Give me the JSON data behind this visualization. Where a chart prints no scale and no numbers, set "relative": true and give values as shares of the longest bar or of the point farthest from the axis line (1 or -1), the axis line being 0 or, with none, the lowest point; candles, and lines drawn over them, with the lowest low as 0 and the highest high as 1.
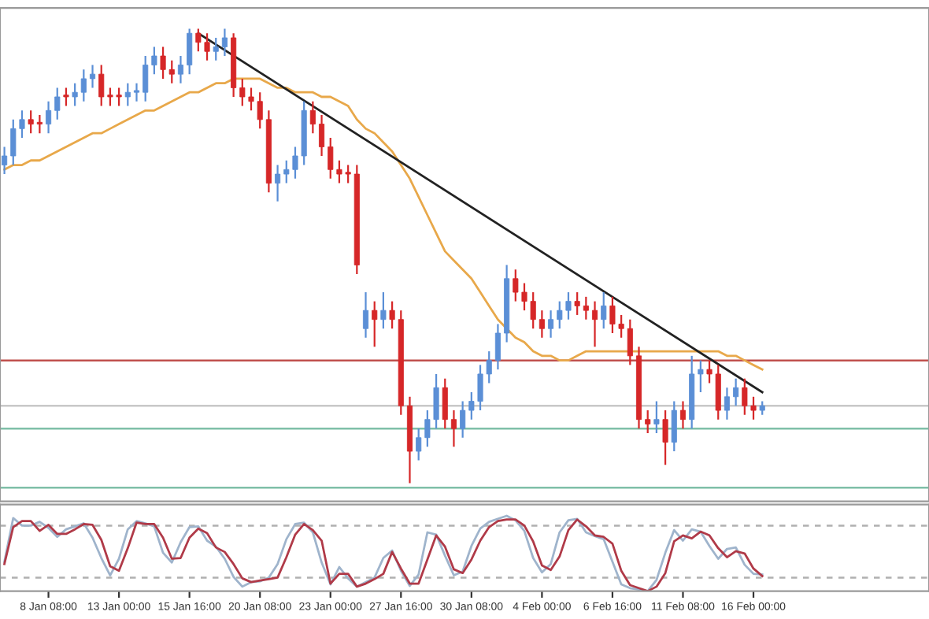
{
  "chart_data": [
    {
      "type": "candlestick",
      "relative": true,
      "tick_labels": false,
      "categories": [
        null,
        null,
        null,
        null,
        null,
        null,
        null,
        null,
        null,
        null,
        null,
        null,
        null,
        null,
        null,
        null,
        null,
        null,
        null,
        null,
        null,
        null,
        null,
        null,
        null,
        null,
        null,
        null,
        null,
        null,
        null,
        null,
        null,
        null,
        null,
        null,
        null,
        null,
        null,
        null,
        null,
        null,
        null,
        null,
        null,
        null,
        null,
        null,
        null,
        null,
        null,
        null,
        null,
        null,
        null,
        null,
        null,
        null,
        null,
        null,
        null,
        null,
        null,
        null,
        null,
        null,
        null,
        null,
        null,
        null,
        null,
        null,
        null,
        null,
        null,
        null,
        null,
        null,
        null,
        null,
        null,
        null,
        null,
        null,
        null,
        null,
        null
      ],
      "ohlc": [
        [
          0.7,
          0.74,
          0.68,
          0.72
        ],
        [
          0.72,
          0.8,
          0.7,
          0.78
        ],
        [
          0.78,
          0.82,
          0.76,
          0.8
        ],
        [
          0.8,
          0.82,
          0.77,
          0.79
        ],
        [
          0.79,
          0.81,
          0.77,
          0.79
        ],
        [
          0.79,
          0.84,
          0.77,
          0.82
        ],
        [
          0.82,
          0.87,
          0.8,
          0.85
        ],
        [
          0.85,
          0.87,
          0.83,
          0.85
        ],
        [
          0.85,
          0.88,
          0.83,
          0.86
        ],
        [
          0.86,
          0.91,
          0.84,
          0.89
        ],
        [
          0.89,
          0.92,
          0.87,
          0.9
        ],
        [
          0.9,
          0.92,
          0.83,
          0.85
        ],
        [
          0.85,
          0.87,
          0.83,
          0.85
        ],
        [
          0.85,
          0.87,
          0.83,
          0.85
        ],
        [
          0.85,
          0.88,
          0.83,
          0.86
        ],
        [
          0.86,
          0.88,
          0.84,
          0.86
        ],
        [
          0.86,
          0.94,
          0.84,
          0.92
        ],
        [
          0.92,
          0.96,
          0.9,
          0.94
        ],
        [
          0.94,
          0.96,
          0.89,
          0.91
        ],
        [
          0.91,
          0.93,
          0.88,
          0.9
        ],
        [
          0.9,
          0.94,
          0.88,
          0.92
        ],
        [
          0.92,
          1.0,
          0.9,
          0.99
        ],
        [
          0.99,
          1.0,
          0.95,
          0.97
        ],
        [
          0.97,
          0.99,
          0.93,
          0.95
        ],
        [
          0.95,
          0.98,
          0.93,
          0.96
        ],
        [
          0.96,
          1.0,
          0.94,
          0.98
        ],
        [
          0.98,
          0.99,
          0.85,
          0.87
        ],
        [
          0.87,
          0.89,
          0.83,
          0.85
        ],
        [
          0.85,
          0.87,
          0.82,
          0.84
        ],
        [
          0.84,
          0.86,
          0.78,
          0.8
        ],
        [
          0.8,
          0.82,
          0.64,
          0.66
        ],
        [
          0.66,
          0.7,
          0.62,
          0.68
        ],
        [
          0.68,
          0.71,
          0.66,
          0.69
        ],
        [
          0.69,
          0.74,
          0.67,
          0.72
        ],
        [
          0.72,
          0.84,
          0.7,
          0.82
        ],
        [
          0.82,
          0.84,
          0.77,
          0.79
        ],
        [
          0.79,
          0.81,
          0.72,
          0.74
        ],
        [
          0.74,
          0.76,
          0.67,
          0.69
        ],
        [
          0.69,
          0.71,
          0.66,
          0.68
        ],
        [
          0.68,
          0.7,
          0.66,
          0.68
        ],
        [
          0.68,
          0.7,
          0.46,
          0.48
        ],
        [
          0.34,
          0.42,
          0.32,
          0.38
        ],
        [
          0.38,
          0.4,
          0.3,
          0.36
        ],
        [
          0.36,
          0.42,
          0.34,
          0.38
        ],
        [
          0.38,
          0.4,
          0.34,
          0.36
        ],
        [
          0.36,
          0.38,
          0.15,
          0.17
        ],
        [
          0.17,
          0.19,
          0.0,
          0.07
        ],
        [
          0.07,
          0.12,
          0.05,
          0.1
        ],
        [
          0.1,
          0.16,
          0.08,
          0.14
        ],
        [
          0.14,
          0.24,
          0.12,
          0.21
        ],
        [
          0.21,
          0.23,
          0.12,
          0.14
        ],
        [
          0.14,
          0.16,
          0.08,
          0.12
        ],
        [
          0.12,
          0.18,
          0.1,
          0.16
        ],
        [
          0.16,
          0.2,
          0.14,
          0.18
        ],
        [
          0.18,
          0.26,
          0.16,
          0.24
        ],
        [
          0.24,
          0.29,
          0.22,
          0.27
        ],
        [
          0.27,
          0.35,
          0.25,
          0.33
        ],
        [
          0.33,
          0.48,
          0.31,
          0.45
        ],
        [
          0.45,
          0.47,
          0.4,
          0.42
        ],
        [
          0.42,
          0.44,
          0.38,
          0.4
        ],
        [
          0.4,
          0.42,
          0.34,
          0.36
        ],
        [
          0.36,
          0.38,
          0.32,
          0.34
        ],
        [
          0.34,
          0.38,
          0.32,
          0.36
        ],
        [
          0.36,
          0.4,
          0.34,
          0.38
        ],
        [
          0.38,
          0.42,
          0.36,
          0.4
        ],
        [
          0.4,
          0.42,
          0.37,
          0.39
        ],
        [
          0.39,
          0.41,
          0.36,
          0.38
        ],
        [
          0.38,
          0.4,
          0.3,
          0.36
        ],
        [
          0.36,
          0.42,
          0.34,
          0.39
        ],
        [
          0.39,
          0.41,
          0.33,
          0.35
        ],
        [
          0.35,
          0.37,
          0.32,
          0.34
        ],
        [
          0.34,
          0.36,
          0.26,
          0.28
        ],
        [
          0.28,
          0.3,
          0.12,
          0.14
        ],
        [
          0.14,
          0.16,
          0.11,
          0.13
        ],
        [
          0.13,
          0.18,
          0.11,
          0.14
        ],
        [
          0.14,
          0.16,
          0.04,
          0.09
        ],
        [
          0.09,
          0.18,
          0.07,
          0.16
        ],
        [
          0.16,
          0.18,
          0.12,
          0.14
        ],
        [
          0.14,
          0.28,
          0.12,
          0.24
        ],
        [
          0.24,
          0.27,
          0.2,
          0.25
        ],
        [
          0.25,
          0.27,
          0.22,
          0.24
        ],
        [
          0.24,
          0.26,
          0.14,
          0.16
        ],
        [
          0.16,
          0.21,
          0.14,
          0.19
        ],
        [
          0.19,
          0.23,
          0.17,
          0.21
        ],
        [
          0.21,
          0.23,
          0.15,
          0.17
        ],
        [
          0.17,
          0.19,
          0.14,
          0.16
        ],
        [
          0.16,
          0.18,
          0.15,
          0.17
        ]
      ],
      "colors": [
        "#5b8fd6",
        "#5b8fd6",
        "#5b8fd6",
        "#d62728",
        "#d62728",
        "#5b8fd6",
        "#5b8fd6",
        "#d62728",
        "#5b8fd6",
        "#5b8fd6",
        "#5b8fd6",
        "#d62728",
        "#d62728",
        "#d62728",
        "#5b8fd6",
        "#5b8fd6",
        "#5b8fd6",
        "#5b8fd6",
        "#d62728",
        "#d62728",
        "#5b8fd6",
        "#5b8fd6",
        "#d62728",
        "#d62728",
        "#5b8fd6",
        "#5b8fd6",
        "#d62728",
        "#d62728",
        "#d62728",
        "#d62728",
        "#d62728",
        "#5b8fd6",
        "#5b8fd6",
        "#5b8fd6",
        "#5b8fd6",
        "#d62728",
        "#d62728",
        "#d62728",
        "#d62728",
        "#d62728",
        "#d62728",
        "#5b8fd6",
        "#d62728",
        "#5b8fd6",
        "#d62728",
        "#d62728",
        "#d62728",
        "#5b8fd6",
        "#5b8fd6",
        "#5b8fd6",
        "#d62728",
        "#d62728",
        "#5b8fd6",
        "#5b8fd6",
        "#5b8fd6",
        "#5b8fd6",
        "#5b8fd6",
        "#5b8fd6",
        "#d62728",
        "#d62728",
        "#d62728",
        "#d62728",
        "#5b8fd6",
        "#5b8fd6",
        "#5b8fd6",
        "#d62728",
        "#d62728",
        "#d62728",
        "#5b8fd6",
        "#d62728",
        "#d62728",
        "#d62728",
        "#d62728",
        "#d62728",
        "#5b8fd6",
        "#d62728",
        "#5b8fd6",
        "#d62728",
        "#5b8fd6",
        "#5b8fd6",
        "#d62728",
        "#d62728",
        "#5b8fd6",
        "#5b8fd6",
        "#d62728",
        "#d62728",
        "#5b8fd6"
      ],
      "series": [
        {
          "type": "line",
          "color": "#e8a84a",
          "values": [
            0.69,
            0.7,
            0.7,
            0.71,
            0.71,
            0.72,
            0.73,
            0.74,
            0.75,
            0.76,
            0.77,
            0.77,
            0.78,
            0.79,
            0.8,
            0.81,
            0.82,
            0.82,
            0.83,
            0.84,
            0.85,
            0.86,
            0.86,
            0.87,
            0.88,
            0.88,
            0.89,
            0.89,
            0.89,
            0.89,
            0.88,
            0.87,
            0.87,
            0.86,
            0.86,
            0.86,
            0.85,
            0.85,
            0.84,
            0.83,
            0.8,
            0.78,
            0.77,
            0.75,
            0.73,
            0.7,
            0.67,
            0.63,
            0.59,
            0.55,
            0.51,
            0.49,
            0.47,
            0.45,
            0.42,
            0.39,
            0.36,
            0.34,
            0.32,
            0.31,
            0.29,
            0.28,
            0.28,
            0.27,
            0.27,
            0.28,
            0.29,
            0.29,
            0.29,
            0.29,
            0.29,
            0.29,
            0.29,
            0.29,
            0.29,
            0.29,
            0.29,
            0.29,
            0.29,
            0.29,
            0.29,
            0.29,
            0.28,
            0.28,
            0.27,
            0.26,
            0.25
          ]
        },
        {
          "type": "line",
          "color": "#222222",
          "values": [
            null,
            null,
            null,
            null,
            null,
            null,
            null,
            null,
            null,
            null,
            null,
            null,
            null,
            null,
            null,
            null,
            null,
            null,
            null,
            null,
            null,
            null,
            0.99,
            null,
            null,
            null,
            null,
            null,
            null,
            null,
            null,
            null,
            null,
            null,
            null,
            null,
            null,
            null,
            null,
            null,
            null,
            null,
            null,
            null,
            null,
            null,
            null,
            null,
            null,
            null,
            null,
            null,
            null,
            null,
            null,
            null,
            null,
            null,
            null,
            null,
            null,
            null,
            null,
            null,
            null,
            null,
            null,
            null,
            null,
            null,
            null,
            null,
            null,
            null,
            null,
            null,
            null,
            null,
            null,
            null,
            null,
            null,
            null,
            null,
            null,
            null,
            0.2
          ]
        }
      ],
      "ref_lines": [
        {
          "axis": "y",
          "value": 0.27,
          "color": "#c0504d",
          "line_style": "solid"
        },
        {
          "axis": "y",
          "value": 0.17,
          "color": "#c8c8c8",
          "line_style": "solid"
        },
        {
          "axis": "y",
          "value": 0.12,
          "color": "#7fbfa8",
          "line_style": "solid"
        },
        {
          "axis": "y",
          "value": -0.01,
          "color": "#7fbfa8",
          "line_style": "solid"
        }
      ]
    },
    {
      "type": "line",
      "relative": true,
      "tick_labels": "x",
      "categories": [
        null,
        null,
        null,
        null,
        null,
        "8 Jan 08:00",
        null,
        null,
        null,
        null,
        null,
        null,
        null,
        "13 Jan 00:00",
        null,
        null,
        null,
        null,
        null,
        null,
        null,
        "15 Jan 16:00",
        null,
        null,
        null,
        null,
        null,
        null,
        null,
        "20 Jan 08:00",
        null,
        null,
        null,
        null,
        null,
        null,
        null,
        "23 Jan 00:00",
        null,
        null,
        null,
        null,
        null,
        null,
        null,
        "27 Jan 16:00",
        null,
        null,
        null,
        null,
        null,
        null,
        null,
        "30 Jan 08:00",
        null,
        null,
        null,
        null,
        null,
        null,
        null,
        "4 Feb 00:00",
        null,
        null,
        null,
        null,
        null,
        null,
        null,
        "6 Feb 16:00",
        null,
        null,
        null,
        null,
        null,
        null,
        null,
        "11 Feb 08:00",
        null,
        null,
        null,
        null,
        null,
        null,
        null,
        "16 Feb 00:00",
        null
      ],
      "series": [
        {
          "color": "#9fb4cc",
          "values": [
            0.39,
            0.97,
            0.87,
            0.87,
            0.92,
            0.84,
            0.72,
            0.82,
            0.86,
            0.9,
            0.71,
            0.44,
            0.21,
            0.43,
            0.82,
            0.93,
            0.9,
            0.86,
            0.51,
            0.38,
            0.65,
            0.85,
            0.86,
            0.67,
            0.59,
            0.43,
            0.19,
            0.06,
            0.12,
            0.13,
            0.18,
            0.36,
            0.69,
            0.89,
            0.91,
            0.78,
            0.38,
            0.09,
            0.32,
            0.17,
            0.06,
            0.12,
            0.18,
            0.44,
            0.54,
            0.27,
            0.07,
            0.22,
            0.78,
            0.75,
            0.47,
            0.21,
            0.26,
            0.6,
            0.83,
            0.92,
            0.96,
            1.0,
            0.94,
            0.8,
            0.44,
            0.25,
            0.36,
            0.78,
            0.94,
            0.96,
            0.78,
            0.73,
            0.69,
            0.39,
            0.09,
            0.04,
            0.02,
            0.0,
            0.15,
            0.51,
            0.81,
            0.67,
            0.82,
            0.79,
            0.6,
            0.43,
            0.56,
            0.58,
            0.35,
            0.23,
            0.22
          ]
        },
        {
          "color": "#b03a48",
          "values": [
            0.36,
            0.85,
            0.93,
            0.93,
            0.8,
            0.88,
            0.76,
            0.76,
            0.82,
            0.89,
            0.88,
            0.68,
            0.33,
            0.27,
            0.57,
            0.91,
            0.89,
            0.89,
            0.71,
            0.43,
            0.44,
            0.71,
            0.83,
            0.77,
            0.58,
            0.52,
            0.36,
            0.17,
            0.12,
            0.14,
            0.16,
            0.18,
            0.45,
            0.75,
            0.89,
            0.81,
            0.67,
            0.1,
            0.23,
            0.23,
            0.06,
            0.1,
            0.16,
            0.23,
            0.52,
            0.3,
            0.1,
            0.1,
            0.42,
            0.74,
            0.59,
            0.29,
            0.24,
            0.42,
            0.67,
            0.85,
            0.93,
            0.95,
            0.95,
            0.87,
            0.66,
            0.34,
            0.28,
            0.46,
            0.81,
            0.95,
            0.86,
            0.74,
            0.72,
            0.63,
            0.27,
            0.08,
            0.04,
            0.0,
            0.06,
            0.24,
            0.66,
            0.74,
            0.7,
            0.79,
            0.74,
            0.57,
            0.45,
            0.53,
            0.5,
            0.3,
            0.2
          ]
        }
      ],
      "ref_lines": [
        {
          "axis": "y",
          "value": 0.87,
          "color": "#b0b0b0",
          "line_style": "dashed"
        },
        {
          "axis": "y",
          "value": 0.18,
          "color": "#b0b0b0",
          "line_style": "dashed"
        }
      ]
    }
  ]
}
